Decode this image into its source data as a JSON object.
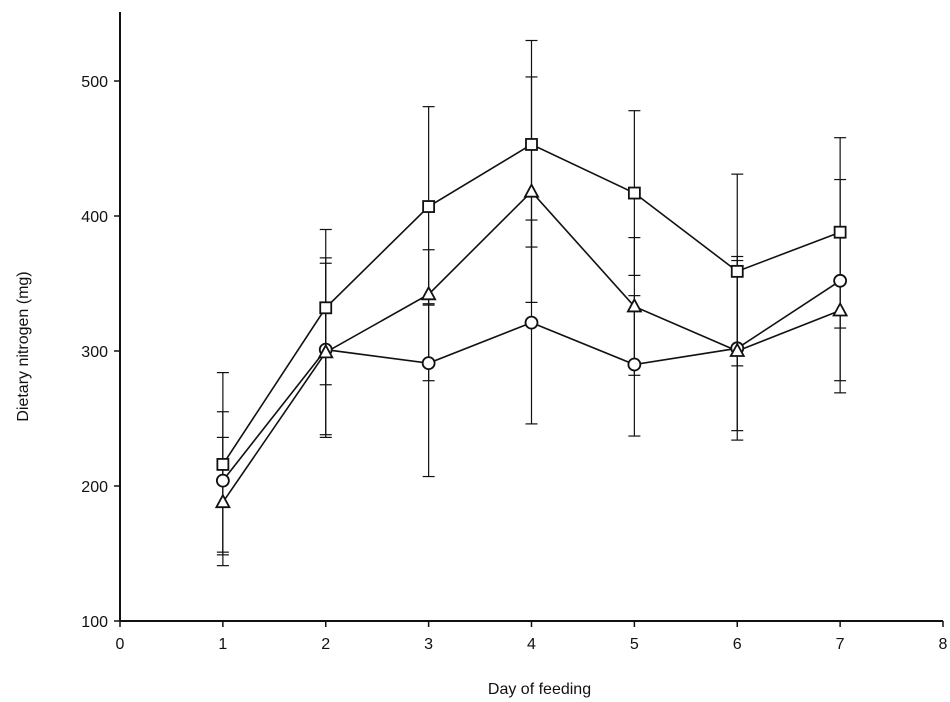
{
  "chart_data": {
    "type": "line",
    "title": "",
    "xlabel": "Day of feeding",
    "ylabel": "Dietary nitrogen (mg)",
    "xlim": [
      0,
      8
    ],
    "ylim": [
      100,
      550
    ],
    "x_ticks": [
      0,
      1,
      2,
      3,
      4,
      5,
      6,
      7,
      8
    ],
    "y_ticks": [
      100,
      200,
      300,
      400,
      500
    ],
    "grid": false,
    "legend": "none",
    "x": [
      1,
      2,
      3,
      4,
      5,
      6,
      7
    ],
    "series": [
      {
        "marker": "square",
        "values": [
          216,
          332,
          407,
          453,
          417,
          359,
          388
        ],
        "error_upper": [
          284,
          390,
          481,
          530,
          478,
          431,
          458
        ],
        "error_lower": [
          151,
          275,
          334,
          377,
          356,
          289,
          317
        ]
      },
      {
        "marker": "circle",
        "values": [
          204,
          301,
          291,
          321,
          290,
          302,
          352
        ],
        "error_upper": [
          255,
          365,
          335,
          397,
          341,
          370,
          427
        ],
        "error_lower": [
          149,
          236,
          207,
          246,
          237,
          234,
          278
        ]
      },
      {
        "marker": "triangle",
        "values": [
          188,
          299,
          342,
          418,
          333,
          300,
          330
        ],
        "error_upper": [
          236,
          369,
          375,
          503,
          384,
          367,
          386
        ],
        "error_lower": [
          141,
          238,
          278,
          336,
          282,
          241,
          269
        ]
      }
    ],
    "colors": {
      "line": "#111111",
      "background": "#ffffff"
    }
  }
}
